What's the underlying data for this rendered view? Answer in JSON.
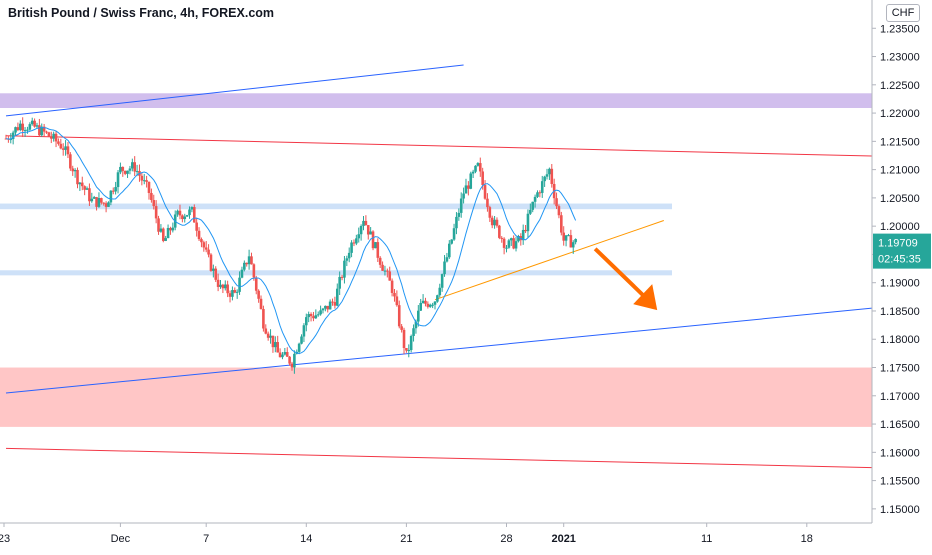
{
  "header": {
    "title": "British Pound / Swiss Franc, 4h, FOREX.com"
  },
  "currency_button": {
    "label": "CHF"
  },
  "chart_data": {
    "type": "candlestick",
    "title": "British Pound / Swiss Franc, 4h, FOREX.com",
    "ylim": [
      1.1475,
      1.24
    ],
    "y_ticks": [
      "1.15000",
      "1.15500",
      "1.16000",
      "1.16500",
      "1.17000",
      "1.17500",
      "1.18000",
      "1.18500",
      "1.19000",
      "1.19500",
      "1.20000",
      "1.20500",
      "1.21000",
      "1.21500",
      "1.22000",
      "1.22500",
      "1.23000",
      "1.23500"
    ],
    "x_ticks": [
      {
        "label": "23",
        "day": 0
      },
      {
        "label": "Dec",
        "day": 8
      },
      {
        "label": "7",
        "day": 14
      },
      {
        "label": "14",
        "day": 21
      },
      {
        "label": "21",
        "day": 28
      },
      {
        "label": "28",
        "day": 35
      },
      {
        "label": "2021",
        "day": 39
      },
      {
        "label": "11",
        "day": 49
      },
      {
        "label": "18",
        "day": 56
      }
    ],
    "last_price": "1.19709",
    "countdown": "02:45:35",
    "colors": {
      "up": "#26a69a",
      "down": "#ef5350",
      "ma": "#2196f3",
      "trend_red": "#f23645",
      "trend_blue": "#2962ff",
      "support": "#ff9800",
      "zone_purple": "#c9b3ea",
      "zone_blue": "#c5dcf7",
      "zone_red": "#ffbcbc",
      "arrow": "#ff6d00"
    },
    "zones": [
      {
        "name": "resistance-zone",
        "y1": 1.2209,
        "y2": 1.2235,
        "color": "#c9b3ea"
      },
      {
        "name": "upper-level-zone",
        "y1": 1.203,
        "y2": 1.204,
        "color": "#c5dcf7"
      },
      {
        "name": "lower-level-zone",
        "y1": 1.1913,
        "y2": 1.1922,
        "color": "#c5dcf7"
      },
      {
        "name": "demand-zone",
        "y1": 1.1645,
        "y2": 1.175,
        "color": "#ffbcbc"
      }
    ],
    "trendlines": [
      {
        "name": "upper-blue-trendline",
        "x1": 0,
        "y1": 1.2195,
        "x2": 32,
        "y2": 1.2285,
        "color": "#2962ff"
      },
      {
        "name": "upper-red-trendline",
        "x1": 0,
        "y1": 1.216,
        "x2": 61,
        "y2": 1.2124,
        "color": "#f23645"
      },
      {
        "name": "lower-red-trendline",
        "x1": 0,
        "y1": 1.1607,
        "x2": 61,
        "y2": 1.1573,
        "color": "#f23645"
      },
      {
        "name": "lower-blue-trendline",
        "x1": 0,
        "y1": 1.1705,
        "x2": 61,
        "y2": 1.1855,
        "color": "#2962ff"
      },
      {
        "name": "orange-support-line",
        "x1": 30,
        "y1": 1.187,
        "x2": 46,
        "y2": 1.201,
        "color": "#ff9800"
      }
    ],
    "close_path": [
      [
        0,
        1.2155
      ],
      [
        1,
        1.218
      ],
      [
        2,
        1.2175
      ],
      [
        3,
        1.216
      ],
      [
        4,
        1.214
      ],
      [
        5,
        1.2085
      ],
      [
        6,
        1.2045
      ],
      [
        7,
        1.204
      ],
      [
        8,
        1.21
      ],
      [
        9,
        1.2105
      ],
      [
        10,
        1.206
      ],
      [
        11,
        1.197
      ],
      [
        12,
        1.202
      ],
      [
        13,
        1.2025
      ],
      [
        14,
        1.195
      ],
      [
        15,
        1.189
      ],
      [
        16,
        1.188
      ],
      [
        17,
        1.195
      ],
      [
        18,
        1.183
      ],
      [
        19,
        1.1775
      ],
      [
        20,
        1.176
      ],
      [
        21,
        1.184
      ],
      [
        22,
        1.1845
      ],
      [
        23,
        1.187
      ],
      [
        24,
        1.196
      ],
      [
        25,
        1.2015
      ],
      [
        26,
        1.195
      ],
      [
        27,
        1.189
      ],
      [
        28,
        1.177
      ],
      [
        29,
        1.186
      ],
      [
        30,
        1.187
      ],
      [
        31,
        1.196
      ],
      [
        32,
        1.206
      ],
      [
        33,
        1.2105
      ],
      [
        34,
        1.201
      ],
      [
        35,
        1.1965
      ],
      [
        36,
        1.1975
      ],
      [
        37,
        1.205
      ],
      [
        38,
        1.21
      ],
      [
        39,
        1.1975
      ],
      [
        40,
        1.1971
      ]
    ]
  }
}
